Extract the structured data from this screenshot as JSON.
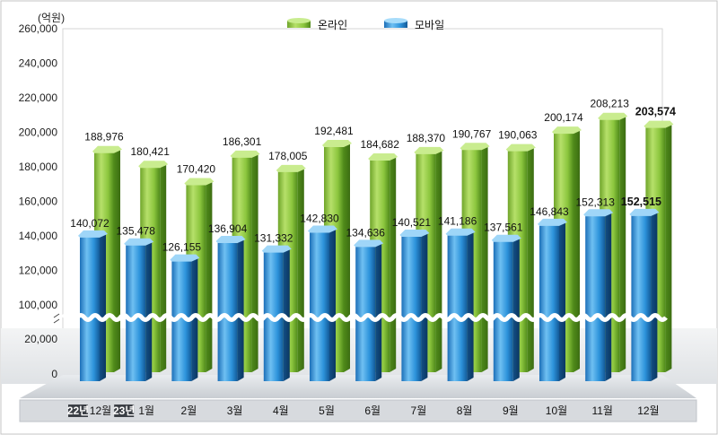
{
  "chart_data": {
    "type": "bar",
    "unit_label": "(억원)",
    "categories": [
      {
        "year": "22년",
        "month": "12월"
      },
      {
        "year": "23년",
        "month": "1월"
      },
      {
        "year": "",
        "month": "2월"
      },
      {
        "year": "",
        "month": "3월"
      },
      {
        "year": "",
        "month": "4월"
      },
      {
        "year": "",
        "month": "5월"
      },
      {
        "year": "",
        "month": "6월"
      },
      {
        "year": "",
        "month": "7월"
      },
      {
        "year": "",
        "month": "8월"
      },
      {
        "year": "",
        "month": "9월"
      },
      {
        "year": "",
        "month": "10월"
      },
      {
        "year": "",
        "month": "11월"
      },
      {
        "year": "",
        "month": "12월"
      }
    ],
    "series": [
      {
        "name": "온라인",
        "color": "#8dc63f",
        "values": [
          188976,
          180421,
          170420,
          186301,
          178005,
          192481,
          184682,
          188370,
          190767,
          190063,
          200174,
          208213,
          203574
        ],
        "labels": [
          "188,976",
          "180,421",
          "170,420",
          "186,301",
          "178,005",
          "192,481",
          "184,682",
          "188,370",
          "190,767",
          "190,063",
          "200,174",
          "208,213",
          "203,574"
        ]
      },
      {
        "name": "모바일",
        "color": "#2a8fd8",
        "values": [
          140072,
          135478,
          126155,
          136904,
          131332,
          142830,
          134636,
          140521,
          141186,
          137561,
          146843,
          152313,
          152515
        ],
        "labels": [
          "140,072",
          "135,478",
          "126,155",
          "136,904",
          "131,332",
          "142,830",
          "134,636",
          "140,521",
          "141,186",
          "137,561",
          "146,843",
          "152,313",
          "152,515"
        ]
      }
    ],
    "y_ticks_upper": [
      "260,000",
      "240,000",
      "220,000",
      "200,000",
      "180,000",
      "160,000",
      "140,000",
      "120,000",
      "100,000"
    ],
    "y_ticks_upper_values": [
      260000,
      240000,
      220000,
      200000,
      180000,
      160000,
      140000,
      120000,
      100000
    ],
    "y_ticks_lower": [
      "20,000",
      "0"
    ],
    "y_ticks_lower_values": [
      20000,
      0
    ],
    "axis_break": true,
    "ylim": [
      0,
      260000
    ],
    "legend_position": "top-center",
    "highlight_last_labels": true
  }
}
